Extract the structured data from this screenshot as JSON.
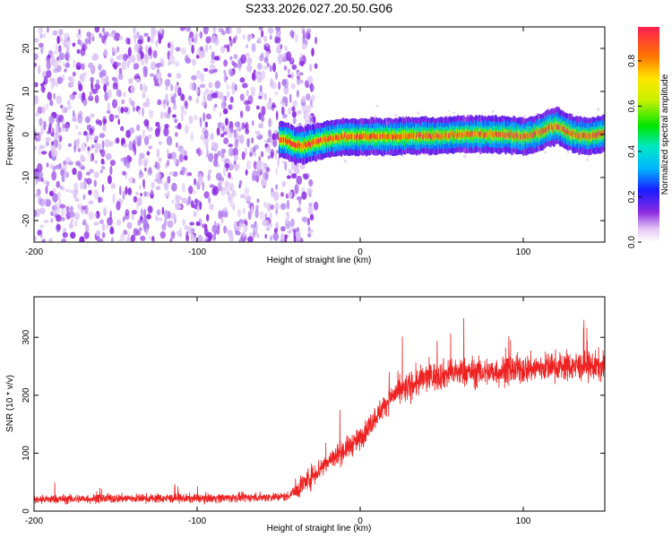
{
  "title": "S233.2026.027.20.50.G06",
  "chart_data": [
    {
      "type": "heatmap",
      "xlabel": "Height of straight line (km)",
      "ylabel": "Frequency (Hz)",
      "xlim": [
        -200,
        150
      ],
      "ylim": [
        -25,
        25
      ],
      "xticks": [
        -200,
        -100,
        0,
        100
      ],
      "yticks": [
        -20,
        -10,
        0,
        10,
        20
      ],
      "noise_region_x": [
        -200,
        -35
      ],
      "signal_track": {
        "x": [
          -50,
          -45,
          -40,
          -35,
          -30,
          -25,
          -20,
          -15,
          -10,
          -5,
          0,
          10,
          20,
          30,
          40,
          50,
          60,
          70,
          80,
          90,
          100,
          110,
          115,
          120,
          125,
          130,
          140,
          150
        ],
        "y": [
          -1,
          -1.5,
          -2.5,
          -2.5,
          -2,
          -1.5,
          -1,
          -0.8,
          -0.5,
          -0.5,
          -0.5,
          -0.5,
          -0.5,
          -0.3,
          -0.3,
          -0.3,
          0,
          0,
          0,
          0,
          -0.5,
          0.5,
          1.5,
          2,
          1,
          0,
          -0.5,
          0.5
        ]
      },
      "colorbar": {
        "label": "Normalized spectral amplitude",
        "range": [
          0,
          0.95
        ],
        "ticks": [
          0.0,
          0.2,
          0.4,
          0.6,
          0.8
        ]
      }
    },
    {
      "type": "line",
      "xlabel": "Height of straight line (km)",
      "ylabel": "SNR (10 * v/v)",
      "xlim": [
        -200,
        150
      ],
      "ylim": [
        0,
        370
      ],
      "xticks": [
        -200,
        -100,
        0,
        100
      ],
      "yticks": [
        0,
        100,
        200,
        300
      ],
      "color": "#ee2222",
      "series": [
        {
          "x": [
            -200,
            -150,
            -100,
            -60,
            -45,
            -40,
            -30,
            -20,
            -10,
            0,
            10,
            20,
            30,
            40,
            50,
            60,
            80,
            100,
            120,
            150
          ],
          "y": [
            20,
            22,
            22,
            24,
            25,
            35,
            60,
            85,
            105,
            125,
            165,
            200,
            215,
            230,
            235,
            240,
            240,
            245,
            250,
            250
          ]
        }
      ]
    }
  ]
}
